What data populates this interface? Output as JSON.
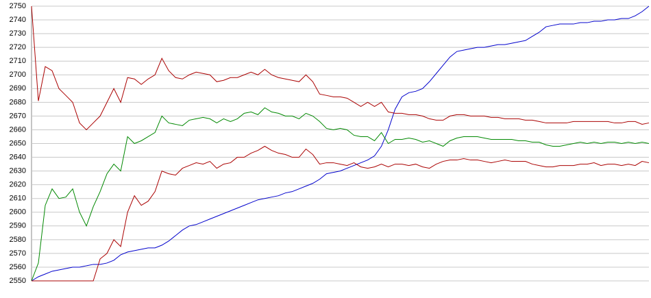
{
  "chart_data": {
    "type": "line",
    "ylim": [
      2550,
      2750
    ],
    "yticks": [
      2550,
      2560,
      2570,
      2580,
      2590,
      2600,
      2610,
      2620,
      2630,
      2640,
      2650,
      2660,
      2670,
      2680,
      2690,
      2700,
      2710,
      2720,
      2730,
      2740,
      2750
    ],
    "grid": true,
    "series": [
      {
        "color": "#0000cc",
        "values": [
          2550,
          2553,
          2555,
          2557,
          2558,
          2559,
          2560,
          2560,
          2561,
          2562,
          2562,
          2563,
          2565,
          2569,
          2571,
          2572,
          2573,
          2574,
          2574,
          2576,
          2579,
          2583,
          2587,
          2590,
          2591,
          2593,
          2595,
          2597,
          2599,
          2601,
          2603,
          2605,
          2607,
          2609,
          2610,
          2611,
          2612,
          2614,
          2615,
          2617,
          2619,
          2621,
          2624,
          2628,
          2629,
          2630,
          2632,
          2634,
          2636,
          2638,
          2641,
          2648,
          2660,
          2675,
          2684,
          2687,
          2688,
          2690,
          2695,
          2701,
          2707,
          2713,
          2717,
          2718,
          2719,
          2720,
          2720,
          2721,
          2722,
          2722,
          2723,
          2724,
          2725,
          2728,
          2731,
          2735,
          2736,
          2737,
          2737,
          2737,
          2738,
          2738,
          2739,
          2739,
          2740,
          2740,
          2741,
          2741,
          2743,
          2746,
          2750
        ]
      },
      {
        "color": "#aa0000",
        "values": [
          2750,
          2681,
          2706,
          2703,
          2690,
          2685,
          2680,
          2665,
          2660,
          2665,
          2670,
          2680,
          2690,
          2680,
          2698,
          2697,
          2693,
          2697,
          2700,
          2712,
          2703,
          2698,
          2697,
          2700,
          2702,
          2701,
          2700,
          2695,
          2696,
          2698,
          2698,
          2700,
          2702,
          2700,
          2704,
          2700,
          2698,
          2697,
          2696,
          2695,
          2700,
          2695,
          2686,
          2685,
          2684,
          2684,
          2683,
          2680,
          2677,
          2680,
          2677,
          2680,
          2673,
          2672,
          2672,
          2671,
          2671,
          2670,
          2668,
          2667,
          2667,
          2670,
          2671,
          2671,
          2670,
          2670,
          2670,
          2669,
          2669,
          2668,
          2668,
          2668,
          2667,
          2667,
          2666,
          2665,
          2665,
          2665,
          2665,
          2666,
          2666,
          2666,
          2666,
          2666,
          2666,
          2665,
          2665,
          2666,
          2666,
          2664,
          2665
        ]
      },
      {
        "color": "#008800",
        "values": [
          2550,
          2563,
          2605,
          2617,
          2610,
          2611,
          2617,
          2600,
          2590,
          2604,
          2615,
          2628,
          2635,
          2630,
          2655,
          2650,
          2652,
          2655,
          2658,
          2670,
          2665,
          2664,
          2663,
          2667,
          2668,
          2669,
          2668,
          2665,
          2668,
          2666,
          2668,
          2672,
          2673,
          2671,
          2676,
          2673,
          2672,
          2670,
          2670,
          2668,
          2672,
          2670,
          2666,
          2661,
          2660,
          2661,
          2660,
          2656,
          2655,
          2655,
          2652,
          2658,
          2650,
          2653,
          2653,
          2654,
          2653,
          2651,
          2652,
          2650,
          2648,
          2652,
          2654,
          2655,
          2655,
          2655,
          2654,
          2653,
          2653,
          2653,
          2653,
          2652,
          2652,
          2651,
          2651,
          2649,
          2648,
          2648,
          2649,
          2650,
          2651,
          2650,
          2651,
          2650,
          2651,
          2651,
          2650,
          2651,
          2650,
          2651,
          2650
        ]
      },
      {
        "color": "#aa0000",
        "values": [
          2550,
          2550,
          2550,
          2550,
          2550,
          2550,
          2550,
          2550,
          2550,
          2550,
          2566,
          2570,
          2580,
          2575,
          2600,
          2612,
          2605,
          2608,
          2615,
          2630,
          2628,
          2627,
          2632,
          2634,
          2636,
          2635,
          2637,
          2632,
          2635,
          2636,
          2640,
          2640,
          2643,
          2645,
          2648,
          2645,
          2643,
          2642,
          2640,
          2640,
          2646,
          2642,
          2635,
          2636,
          2636,
          2635,
          2634,
          2636,
          2633,
          2632,
          2633,
          2635,
          2633,
          2635,
          2635,
          2634,
          2635,
          2633,
          2632,
          2635,
          2637,
          2638,
          2638,
          2639,
          2638,
          2638,
          2637,
          2636,
          2637,
          2638,
          2637,
          2637,
          2637,
          2635,
          2634,
          2633,
          2633,
          2634,
          2634,
          2634,
          2635,
          2635,
          2636,
          2634,
          2635,
          2635,
          2634,
          2635,
          2634,
          2637,
          2636
        ]
      }
    ]
  }
}
